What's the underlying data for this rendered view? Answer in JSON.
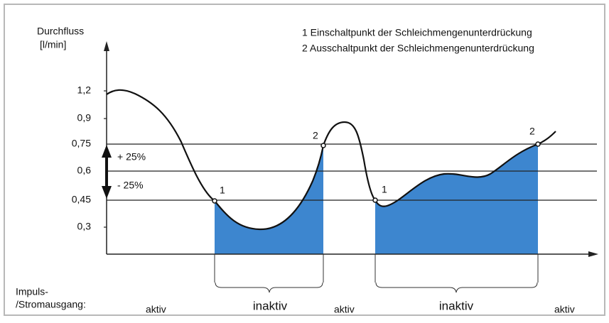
{
  "y_axis": {
    "label": [
      "Durchfluss",
      "[l/min]"
    ],
    "ticks": [
      "1,2",
      "0,9",
      "0,75",
      "0,6",
      "0,45",
      "0,3"
    ]
  },
  "legend": [
    "1 Einschaltpunkt der Schleichmengenunterdrückung",
    "2 Ausschaltpunkt der Schleichmengenunterdrückung"
  ],
  "band": {
    "upper": "+ 25%",
    "lower": "- 25%"
  },
  "points": [
    "1",
    "2",
    "1",
    "2"
  ],
  "output": {
    "label": [
      "Impuls-",
      "/Stromausgang:"
    ],
    "states": [
      "aktiv",
      "inaktiv",
      "aktiv",
      "inaktiv",
      "aktiv"
    ]
  }
}
